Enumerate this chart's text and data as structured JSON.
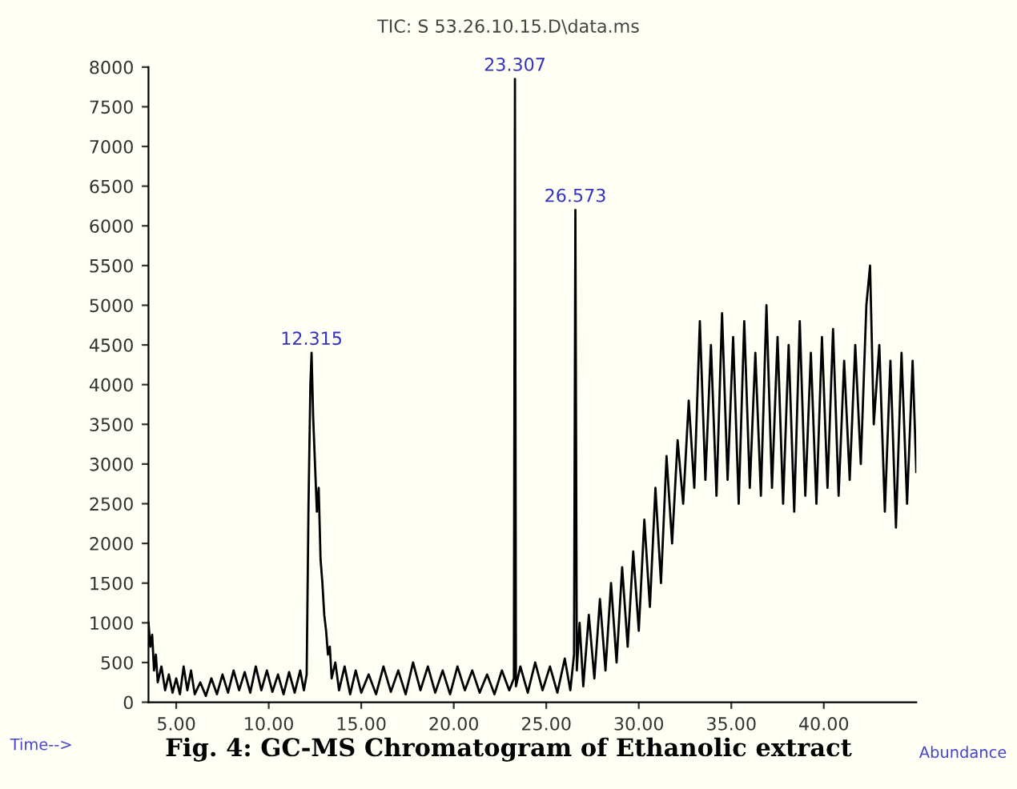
{
  "chart_data": {
    "type": "line",
    "title": "TIC: S 53.26.10.15.D\\data.ms",
    "xlabel": "Time-->",
    "ylabel": "Abundance",
    "annotations": [
      {
        "text": "12.315",
        "x": 12.315,
        "y": 4400
      },
      {
        "text": "23.307",
        "x": 23.307,
        "y": 7850
      },
      {
        "text": "26.573",
        "x": 26.573,
        "y": 6200
      },
      "Fig. 4: GC-MS Chromatogram of Ethanolic extract"
    ],
    "xlim": [
      3.5,
      45
    ],
    "ylim": [
      0,
      8000
    ],
    "xticks": [
      {
        "value": 5,
        "label": "5.00"
      },
      {
        "value": 10,
        "label": "10.00"
      },
      {
        "value": 15,
        "label": "15.00"
      },
      {
        "value": 20,
        "label": "20.00"
      },
      {
        "value": 25,
        "label": "25.00"
      },
      {
        "value": 30,
        "label": "30.00"
      },
      {
        "value": 35,
        "label": "35.00"
      },
      {
        "value": 40,
        "label": "40.00"
      }
    ],
    "yticks": [
      0,
      500,
      1000,
      1500,
      2000,
      2500,
      3000,
      3500,
      4000,
      4500,
      5000,
      5500,
      6000,
      6500,
      7000,
      7500,
      8000
    ],
    "grid": false,
    "legend": false,
    "marker": "none",
    "line_style": "solid",
    "series": [
      {
        "color": "#000000",
        "x": [
          3.5,
          3.6,
          3.7,
          3.8,
          3.9,
          4.0,
          4.2,
          4.4,
          4.6,
          4.8,
          5.0,
          5.2,
          5.4,
          5.6,
          5.8,
          6.0,
          6.3,
          6.6,
          6.9,
          7.2,
          7.5,
          7.8,
          8.1,
          8.4,
          8.7,
          9.0,
          9.3,
          9.6,
          9.9,
          10.2,
          10.5,
          10.8,
          11.1,
          11.4,
          11.7,
          11.9,
          12.05,
          12.15,
          12.25,
          12.315,
          12.4,
          12.5,
          12.6,
          12.7,
          12.8,
          12.9,
          13.0,
          13.1,
          13.2,
          13.3,
          13.4,
          13.6,
          13.8,
          14.1,
          14.4,
          14.7,
          15.0,
          15.4,
          15.8,
          16.2,
          16.6,
          17.0,
          17.4,
          17.8,
          18.2,
          18.6,
          19.0,
          19.4,
          19.8,
          20.2,
          20.6,
          21.0,
          21.4,
          21.8,
          22.2,
          22.6,
          23.0,
          23.25,
          23.307,
          23.36,
          23.6,
          24.0,
          24.4,
          24.8,
          25.2,
          25.6,
          26.0,
          26.3,
          26.5,
          26.573,
          26.65,
          26.8,
          27.0,
          27.3,
          27.6,
          27.9,
          28.2,
          28.5,
          28.8,
          29.1,
          29.4,
          29.7,
          30.0,
          30.3,
          30.6,
          30.9,
          31.2,
          31.5,
          31.8,
          32.1,
          32.4,
          32.7,
          33.0,
          33.3,
          33.6,
          33.9,
          34.2,
          34.5,
          34.8,
          35.1,
          35.4,
          35.7,
          36.0,
          36.3,
          36.6,
          36.9,
          37.2,
          37.5,
          37.8,
          38.1,
          38.4,
          38.7,
          39.0,
          39.3,
          39.6,
          39.9,
          40.2,
          40.5,
          40.8,
          41.1,
          41.4,
          41.7,
          42.0,
          42.3,
          42.5,
          42.7,
          43.0,
          43.3,
          43.6,
          43.9,
          44.2,
          44.5,
          44.8,
          45.0
        ],
        "values": [
          1000,
          700,
          850,
          400,
          600,
          250,
          450,
          150,
          350,
          120,
          300,
          100,
          450,
          150,
          400,
          100,
          250,
          80,
          300,
          100,
          350,
          120,
          400,
          150,
          380,
          120,
          450,
          150,
          400,
          130,
          350,
          100,
          380,
          120,
          400,
          150,
          350,
          2500,
          4000,
          4400,
          3600,
          3000,
          2400,
          2700,
          1800,
          1500,
          1100,
          900,
          600,
          700,
          300,
          500,
          150,
          450,
          100,
          400,
          120,
          350,
          100,
          450,
          130,
          400,
          100,
          500,
          150,
          450,
          120,
          400,
          100,
          450,
          150,
          400,
          120,
          350,
          100,
          400,
          150,
          300,
          7850,
          200,
          450,
          120,
          500,
          150,
          450,
          120,
          550,
          150,
          600,
          6200,
          400,
          1000,
          200,
          1100,
          300,
          1300,
          400,
          1500,
          500,
          1700,
          700,
          1900,
          900,
          2300,
          1200,
          2700,
          1500,
          3100,
          2000,
          3300,
          2500,
          3800,
          2700,
          4800,
          2800,
          4500,
          2600,
          4900,
          2800,
          4600,
          2500,
          4800,
          2700,
          4400,
          2600,
          5000,
          2700,
          4600,
          2500,
          4500,
          2400,
          4800,
          2600,
          4400,
          2500,
          4600,
          2700,
          4700,
          2600,
          4300,
          2800,
          4500,
          3000,
          5000,
          5500,
          3500,
          4500,
          2400,
          4300,
          2200,
          4400,
          2500,
          4300,
          2900
        ]
      }
    ]
  }
}
